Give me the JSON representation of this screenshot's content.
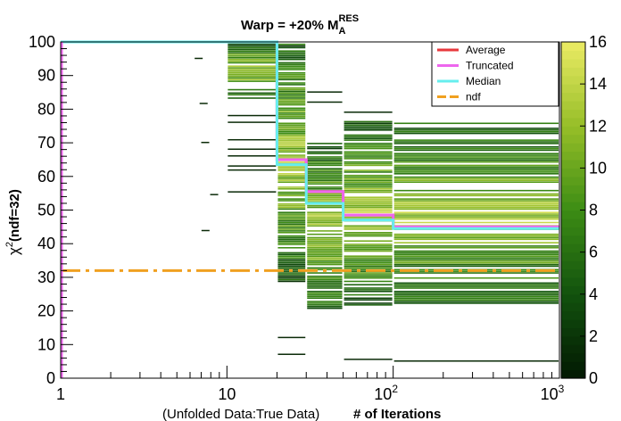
{
  "chart_data": {
    "type": "heatmap",
    "title": "Warp = +20% M",
    "title_sup": "RES",
    "title_sub": "A",
    "xlabel_left": "(Unfolded Data:True Data)",
    "xlabel_right": "# of Iterations",
    "ylabel_main": "χ",
    "ylabel_sup": "2",
    "ylabel_rest": "(ndf=32)",
    "x_scale": "log",
    "xlim": [
      1,
      1000
    ],
    "ylim": [
      0,
      100
    ],
    "x_ticks": [
      {
        "value": 1,
        "label": "1"
      },
      {
        "value": 10,
        "label": "10"
      },
      {
        "value": 100,
        "label": "10",
        "sup": "2"
      },
      {
        "value": 1000,
        "label": "10",
        "sup": "3"
      }
    ],
    "y_ticks": [
      0,
      10,
      20,
      30,
      40,
      50,
      60,
      70,
      80,
      90,
      100
    ],
    "z_range": [
      0,
      16
    ],
    "z_ticks": [
      0,
      2,
      4,
      6,
      8,
      10,
      12,
      14,
      16
    ],
    "colors": {
      "average": "#e8383d",
      "truncated": "#ee66ee",
      "median": "#66eeee",
      "ndf": "#f0a020"
    },
    "legend": {
      "position": "top-right",
      "entries": [
        {
          "label": "Average",
          "key": "average"
        },
        {
          "label": "Truncated",
          "key": "truncated"
        },
        {
          "label": "Median",
          "key": "median"
        },
        {
          "label": "ndf",
          "key": "ndf"
        }
      ]
    },
    "x_edges": [
      1,
      10,
      20,
      30,
      50,
      100,
      1000
    ],
    "bins": [
      {
        "x0": 1,
        "x1": 10,
        "dense_y": [],
        "scatter_y": [
          95,
          81.6,
          70,
          54.5,
          43.8
        ]
      },
      {
        "x0": 10,
        "x1": 20,
        "dense_y": [
          82,
          100
        ],
        "scatter_y": [
          78,
          76,
          70.8,
          68,
          66,
          63,
          61.8,
          55.3
        ]
      },
      {
        "x0": 20,
        "x1": 30,
        "dense_y": [
          28,
          100
        ],
        "scatter_y": [
          12,
          7
        ]
      },
      {
        "x0": 30,
        "x1": 50,
        "dense_y": [
          20,
          70
        ],
        "scatter_y": [
          82,
          85
        ]
      },
      {
        "x0": 50,
        "x1": 100,
        "dense_y": [
          21,
          77
        ],
        "scatter_y": [
          5.5,
          79
        ]
      },
      {
        "x0": 100,
        "x1": 1000,
        "dense_y": [
          21,
          76
        ],
        "scatter_y": [
          5
        ]
      }
    ],
    "series": [
      {
        "name": "Average",
        "key": "average",
        "steps": [
          [
            1,
            100
          ],
          [
            20,
            65
          ],
          [
            30,
            55.5
          ],
          [
            50,
            48.5
          ],
          [
            100,
            45
          ],
          [
            1000,
            45
          ]
        ]
      },
      {
        "name": "Truncated",
        "key": "truncated",
        "steps": [
          [
            1,
            100
          ],
          [
            20,
            65
          ],
          [
            30,
            55.5
          ],
          [
            50,
            48.5
          ],
          [
            100,
            45
          ],
          [
            1000,
            45
          ]
        ]
      },
      {
        "name": "Median",
        "key": "median",
        "steps": [
          [
            1,
            100
          ],
          [
            20,
            63.5
          ],
          [
            30,
            52
          ],
          [
            50,
            47
          ],
          [
            100,
            44.5
          ],
          [
            1000,
            44.5
          ]
        ]
      },
      {
        "name": "ndf",
        "key": "ndf",
        "value": 32
      }
    ]
  }
}
